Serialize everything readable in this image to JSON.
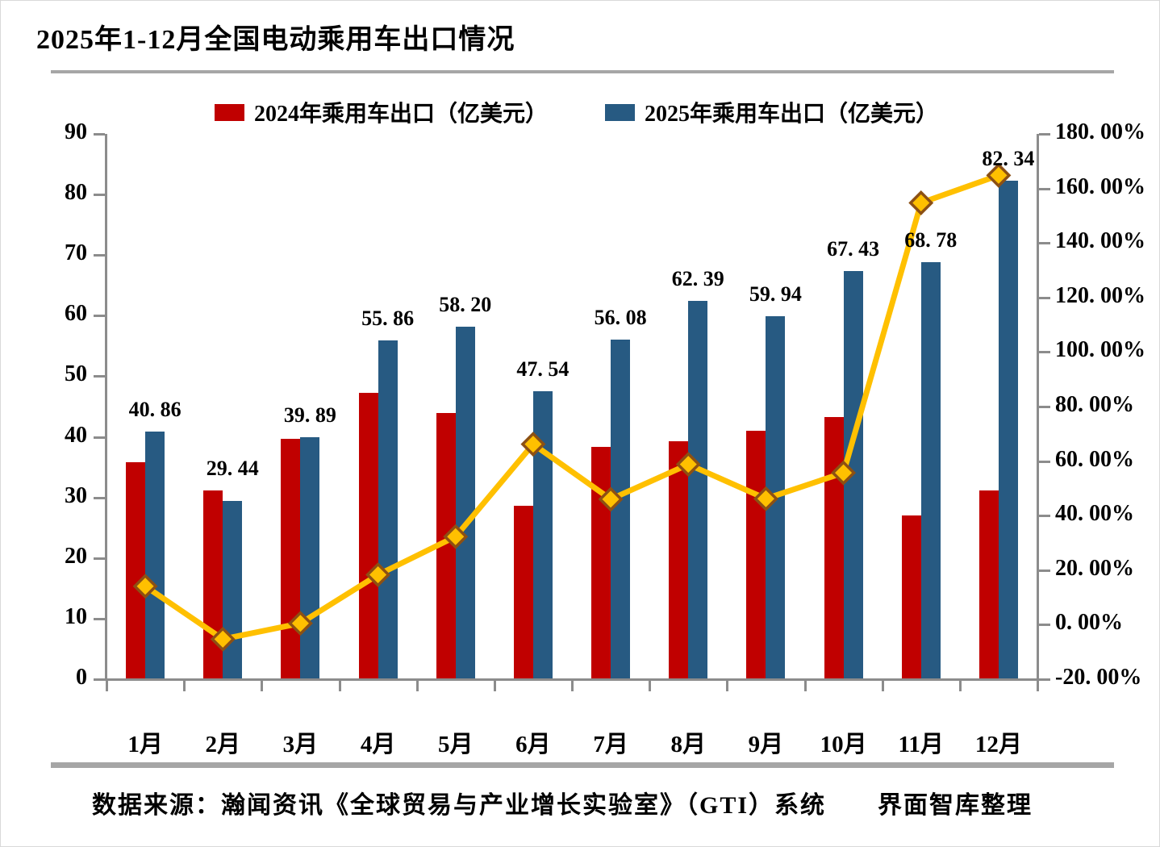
{
  "title": "2025年1-12月全国电动乘用车出口情况",
  "source_note": "数据来源：瀚闻资讯《全球贸易与产业增长实验室》（GTI）系统　　界面智库整理",
  "legend": [
    {
      "label": "2024年乘用车出口（亿美元）",
      "color": "#C00000"
    },
    {
      "label": "2025年乘用车出口（亿美元）",
      "color": "#275A82"
    }
  ],
  "colors": {
    "bar_2024": "#C00000",
    "bar_2025": "#275A82",
    "growth_line": "#FFC000",
    "marker_border": "#8C5014",
    "axis": "#8C8C8C",
    "divider": "#A6A6A6"
  },
  "chart_data": {
    "type": "bar",
    "title": "2025年1-12月全国电动乘用车出口情况",
    "categories": [
      "1月",
      "2月",
      "3月",
      "4月",
      "5月",
      "6月",
      "7月",
      "8月",
      "9月",
      "10月",
      "11月",
      "12月"
    ],
    "series": [
      {
        "name": "2024年乘用车出口（亿美元）",
        "type": "bar",
        "axis": "left",
        "color": "#C00000",
        "values": [
          35.8,
          31.1,
          39.7,
          47.2,
          44.0,
          28.6,
          38.4,
          39.3,
          41.0,
          43.3,
          27.0,
          31.1
        ]
      },
      {
        "name": "2025年乘用车出口（亿美元）",
        "type": "bar",
        "axis": "left",
        "color": "#275A82",
        "values": [
          40.86,
          29.44,
          39.89,
          55.86,
          58.2,
          47.54,
          56.08,
          62.39,
          59.94,
          67.43,
          68.78,
          82.34
        ],
        "labels": [
          "40. 86",
          "29. 44",
          "39. 89",
          "55. 86",
          "58. 20",
          "47. 54",
          "56. 08",
          "62. 39",
          "59. 94",
          "67. 43",
          "68. 78",
          "82. 34"
        ]
      },
      {
        "type": "line",
        "axis": "right",
        "color": "#FFC000",
        "marker": "diamond",
        "values_pct": [
          14.1,
          -5.3,
          0.5,
          18.3,
          32.3,
          66.2,
          46.0,
          58.8,
          46.2,
          55.7,
          154.7,
          164.8
        ]
      }
    ],
    "left_axis": {
      "min": 0,
      "max": 90,
      "step": 10,
      "tick_labels": [
        "90",
        "80",
        "70",
        "60",
        "50",
        "40",
        "30",
        "20",
        "10",
        "0"
      ]
    },
    "right_axis": {
      "min": -20,
      "max": 180,
      "step": 20,
      "tick_labels": [
        "180. 00%",
        "160. 00%",
        "140. 00%",
        "120. 00%",
        "100. 00%",
        "80. 00%",
        "60. 00%",
        "40. 00%",
        "20. 00%",
        "0. 00%",
        "-20. 00%"
      ]
    },
    "grid": "off",
    "legend_position": "top-center"
  }
}
